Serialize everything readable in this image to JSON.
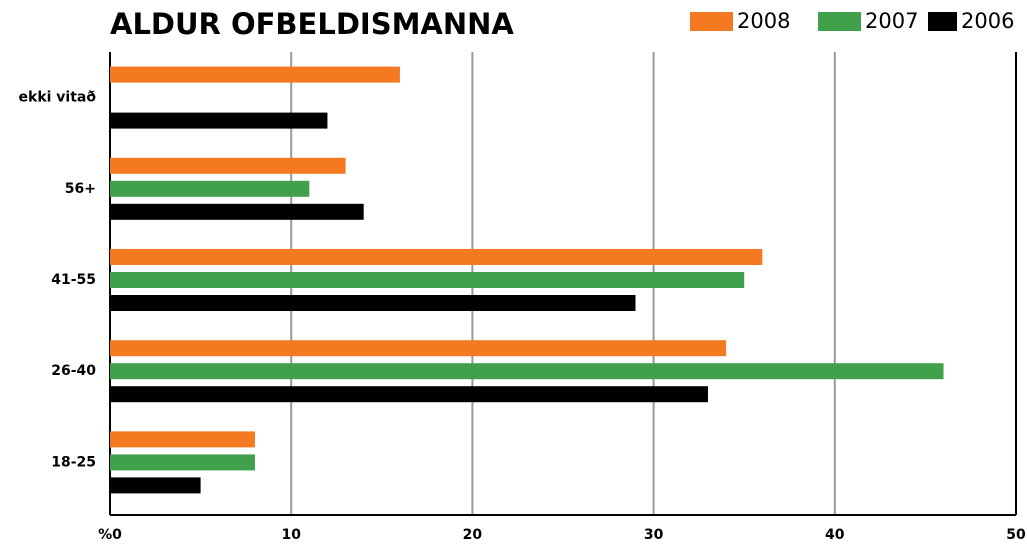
{
  "chart_data": {
    "type": "hbar",
    "title": "ALDUR OFBELDISMANNA",
    "categories": [
      "ekki vitað",
      "56+",
      "41-55",
      "26-40",
      "18-25"
    ],
    "series": [
      {
        "name": "2008",
        "color": "#f47920",
        "values": [
          16,
          13,
          36,
          34,
          8
        ]
      },
      {
        "name": "2007",
        "color": "#41a14a",
        "values": [
          null,
          11,
          35,
          46,
          8
        ]
      },
      {
        "name": "2006",
        "color": "#000000",
        "values": [
          12,
          14,
          29,
          33,
          5
        ]
      }
    ],
    "xlim": [
      0,
      50
    ],
    "xticks": [
      {
        "value": 0,
        "label": "%0"
      },
      10,
      20,
      30,
      40,
      50
    ],
    "grid": true
  }
}
